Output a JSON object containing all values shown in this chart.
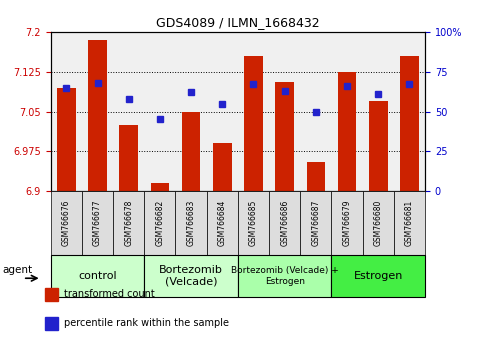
{
  "title": "GDS4089 / ILMN_1668432",
  "samples": [
    "GSM766676",
    "GSM766677",
    "GSM766678",
    "GSM766682",
    "GSM766683",
    "GSM766684",
    "GSM766685",
    "GSM766686",
    "GSM766687",
    "GSM766679",
    "GSM766680",
    "GSM766681"
  ],
  "bar_values": [
    7.095,
    7.185,
    7.025,
    6.915,
    7.05,
    6.99,
    7.155,
    7.105,
    6.955,
    7.125,
    7.07,
    7.155
  ],
  "blue_values": [
    65,
    68,
    58,
    45,
    62,
    55,
    67,
    63,
    50,
    66,
    61,
    67
  ],
  "bar_base": 6.9,
  "ylim_left": [
    6.9,
    7.2
  ],
  "ylim_right": [
    0,
    100
  ],
  "yticks_left": [
    6.9,
    6.975,
    7.05,
    7.125,
    7.2
  ],
  "yticks_right": [
    0,
    25,
    50,
    75,
    100
  ],
  "ytick_labels_left": [
    "6.9",
    "6.975",
    "7.05",
    "7.125",
    "7.2"
  ],
  "ytick_labels_right": [
    "0",
    "25",
    "50",
    "75",
    "100%"
  ],
  "left_axis_color": "#cc0000",
  "right_axis_color": "#0000cc",
  "bar_color": "#cc2200",
  "blue_marker_color": "#2222cc",
  "groups": [
    {
      "label": "control",
      "start": 0,
      "end": 3,
      "color": "#ccffcc"
    },
    {
      "label": "Bortezomib\n(Velcade)",
      "start": 3,
      "end": 6,
      "color": "#ccffcc"
    },
    {
      "label": "Bortezomib (Velcade) +\nEstrogen",
      "start": 6,
      "end": 9,
      "color": "#aaffaa"
    },
    {
      "label": "Estrogen",
      "start": 9,
      "end": 12,
      "color": "#44ee44"
    }
  ],
  "agent_label": "agent",
  "legend_items": [
    {
      "color": "#cc2200",
      "label": "transformed count"
    },
    {
      "color": "#2222cc",
      "label": "percentile rank within the sample"
    }
  ],
  "xlabel_color": "#888888",
  "tick_cell_color": "#dddddd",
  "plot_bg": "#f0f0f0"
}
